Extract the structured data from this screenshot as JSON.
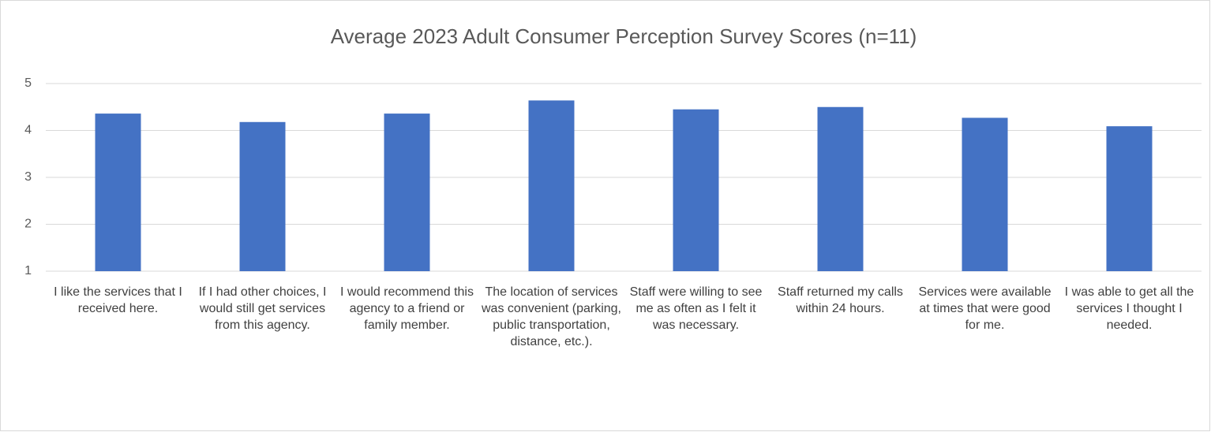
{
  "chart_data": {
    "type": "bar",
    "title": "Average 2023 Adult Consumer Perception Survey Scores (n=11)",
    "categories": [
      "I like the services that I received here.",
      "If I had other choices, I would still get services from this agency.",
      "I would recommend this agency to a friend or family member.",
      "The location of services was convenient (parking, public transportation, distance, etc.).",
      "Staff were willing to see me as often as I felt it was necessary.",
      "Staff returned my calls within 24 hours.",
      "Services were available at times that were good for me.",
      "I was able to get all the services I thought I needed."
    ],
    "values": [
      4.36,
      4.18,
      4.36,
      4.64,
      4.45,
      4.5,
      4.27,
      4.09
    ],
    "color": "#4472c4",
    "ylim": [
      1,
      5
    ],
    "yticks": [
      1,
      2,
      3,
      4,
      5
    ],
    "grid": true
  }
}
